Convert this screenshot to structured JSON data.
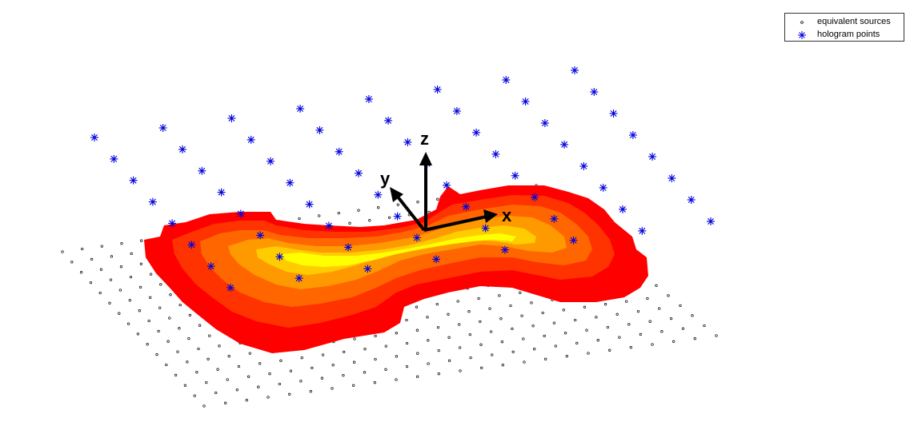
{
  "legend": {
    "equivalent_sources_label": "equivalent sources",
    "hologram_points_label": "hologram points"
  },
  "axes": {
    "x_label": "x",
    "y_label": "y",
    "z_label": "z"
  },
  "colors": {
    "equivalent_sources": "#000000",
    "hologram_points": "#0000dd",
    "surface_levels": [
      "#ff0000",
      "#ff3300",
      "#ff6600",
      "#ff9900",
      "#ffcc00",
      "#ffff00"
    ],
    "axis_arrows": "#000000"
  },
  "scene": {
    "equivalent_sources_grid": {
      "rows": 16,
      "cols": 25
    },
    "hologram_points_grid": {
      "rows": 8,
      "cols": 8
    },
    "surface_levels": 6
  }
}
